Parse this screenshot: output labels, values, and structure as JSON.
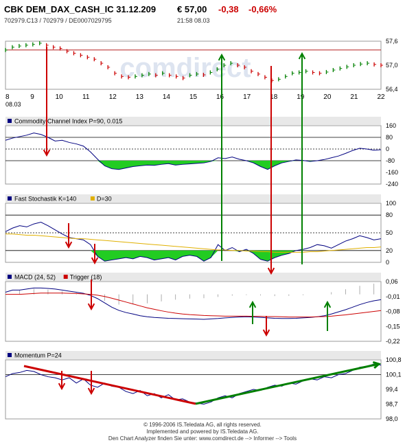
{
  "header": {
    "title": "CBK DEM_DAX_CASH_IC 31.12.209",
    "price": "€ 57,00",
    "change": "-0,38",
    "change_pct": "-0,66%",
    "ids": "702979.C13  /  702979  /  DE0007029795",
    "time": "21:58",
    "date": "08.03"
  },
  "watermark": "comdirect",
  "footer": {
    "line1": "© 1996-2006 IS.Teledata AG, all rights reserved.",
    "line2": "Implemented and powered by IS.Teledata AG.",
    "line3": "Den Chart Analyzer finden Sie unter: www.comdirect.de --> Informer --> Tools"
  },
  "colors": {
    "up": "#008000",
    "down": "#cc0000",
    "line": "#000080",
    "fill": "#22cc22",
    "signal": "#e0b000",
    "panel_header": "#e8e8e8"
  },
  "chart_data": [
    {
      "panel": "price",
      "type": "line",
      "x_ticks": [
        "8",
        "9",
        "10",
        "11",
        "12",
        "13",
        "14",
        "15",
        "16",
        "17",
        "18",
        "19",
        "20",
        "21",
        "22"
      ],
      "x_sublabel": "08.03",
      "y_ticks": [
        "57,6",
        "57,0",
        "56,4"
      ],
      "ylim": [
        56.4,
        57.6
      ],
      "reference": 57.38,
      "series": [
        {
          "values": [
            57.38,
            57.45,
            57.48,
            57.5,
            57.52,
            57.55,
            57.5,
            57.45,
            57.42,
            57.35,
            57.3,
            57.25,
            57.2,
            57.15,
            57.05,
            56.95,
            56.8,
            56.72,
            56.7,
            56.72,
            56.75,
            56.78,
            56.75,
            56.8,
            56.75,
            56.72,
            56.68,
            56.75,
            56.78,
            56.76,
            56.82,
            56.9,
            57.0,
            57.05,
            57.0,
            56.95,
            56.85,
            56.78,
            56.7,
            56.62,
            56.65,
            56.72,
            56.8,
            56.82,
            56.85,
            56.82,
            56.8,
            56.83,
            56.88,
            56.92,
            56.96,
            57.0,
            57.03,
            57.05,
            57.02,
            57.0
          ]
        }
      ]
    },
    {
      "panel": "cci",
      "type": "area",
      "label": "Commodity Channel Index P=90, 0.015",
      "y_ticks": [
        "160",
        "80",
        "0",
        "-80",
        "-160",
        "-240"
      ],
      "ylim": [
        -240,
        160
      ],
      "lines": [
        80,
        0,
        -80
      ],
      "series": [
        {
          "values": [
            60,
            75,
            85,
            95,
            110,
            100,
            80,
            55,
            60,
            45,
            35,
            20,
            -20,
            -70,
            -115,
            -135,
            -140,
            -130,
            -120,
            -115,
            -110,
            -112,
            -105,
            -100,
            -110,
            -105,
            -102,
            -98,
            -95,
            -85,
            -60,
            -65,
            -55,
            -70,
            -80,
            -95,
            -120,
            -140,
            -115,
            -95,
            -85,
            -75,
            -78,
            -85,
            -80,
            -72,
            -60,
            -48,
            -30,
            -10,
            5,
            0,
            -8,
            -5
          ]
        }
      ]
    },
    {
      "panel": "stochastic",
      "type": "line",
      "label": "Fast Stochastik K=140",
      "label2": "D=30",
      "y_ticks": [
        "100",
        "80",
        "50",
        "20",
        "0"
      ],
      "ylim": [
        0,
        100
      ],
      "lines": [
        80,
        50,
        20
      ],
      "series": [
        {
          "values": [
            52,
            58,
            62,
            60,
            65,
            68,
            62,
            55,
            48,
            42,
            40,
            38,
            30,
            10,
            2,
            4,
            6,
            8,
            6,
            10,
            8,
            4,
            6,
            8,
            4,
            10,
            12,
            10,
            2,
            8,
            30,
            20,
            25,
            18,
            22,
            15,
            5,
            2,
            8,
            12,
            15,
            20,
            22,
            25,
            30,
            28,
            24,
            30,
            36,
            40,
            45,
            42,
            38,
            40
          ]
        },
        {
          "values": [
            48,
            48,
            47,
            46,
            46,
            45,
            44,
            43,
            42,
            41,
            40,
            40,
            39,
            38,
            37,
            36,
            35,
            34,
            33,
            32,
            31,
            30,
            29,
            28,
            27,
            26,
            25,
            24,
            23,
            22,
            21,
            21,
            20,
            20,
            19,
            19,
            18,
            18,
            17,
            17,
            17,
            17,
            17,
            18,
            18,
            19,
            20,
            21,
            22,
            23,
            24,
            25,
            25,
            26
          ]
        }
      ]
    },
    {
      "panel": "macd",
      "type": "line",
      "label": "MACD (24, 52)",
      "label2": "Trigger (18)",
      "y_ticks": [
        "0,06",
        "-0,01",
        "-0,08",
        "-0,15",
        "-0,22"
      ],
      "ylim": [
        -0.22,
        0.06
      ],
      "series": [
        {
          "values": [
            0.01,
            0.02,
            0.02,
            0.025,
            0.03,
            0.03,
            0.028,
            0.025,
            0.02,
            0.015,
            0.01,
            0.005,
            -0.005,
            -0.02,
            -0.04,
            -0.06,
            -0.075,
            -0.085,
            -0.092,
            -0.1,
            -0.105,
            -0.108,
            -0.11,
            -0.112,
            -0.113,
            -0.114,
            -0.115,
            -0.116,
            -0.117,
            -0.115,
            -0.113,
            -0.11,
            -0.108,
            -0.106,
            -0.105,
            -0.106,
            -0.108,
            -0.11,
            -0.112,
            -0.113,
            -0.113,
            -0.112,
            -0.11,
            -0.108,
            -0.105,
            -0.1,
            -0.092,
            -0.082,
            -0.072,
            -0.06,
            -0.048,
            -0.038,
            -0.03,
            -0.025
          ]
        },
        {
          "values": [
            0.0,
            0.0,
            0.0,
            0.002,
            0.004,
            0.006,
            0.006,
            0.006,
            0.006,
            0.005,
            0.004,
            0.002,
            0.0,
            -0.004,
            -0.01,
            -0.018,
            -0.027,
            -0.036,
            -0.045,
            -0.054,
            -0.063,
            -0.07,
            -0.077,
            -0.083,
            -0.088,
            -0.092,
            -0.095,
            -0.097,
            -0.099,
            -0.1,
            -0.101,
            -0.102,
            -0.102,
            -0.102,
            -0.102,
            -0.103,
            -0.103,
            -0.104,
            -0.104,
            -0.105,
            -0.106,
            -0.106,
            -0.106,
            -0.106,
            -0.105,
            -0.104,
            -0.102,
            -0.099,
            -0.096,
            -0.092,
            -0.088,
            -0.084,
            -0.08,
            -0.076
          ]
        }
      ]
    },
    {
      "panel": "momentum",
      "type": "line",
      "label": "Momentum P=24",
      "y_ticks": [
        "100,8",
        "100,1",
        "99,4",
        "98,7",
        "98,0"
      ],
      "ylim": [
        98.0,
        100.8
      ],
      "reference": 100.1,
      "series": [
        {
          "values": [
            100.0,
            100.15,
            100.2,
            100.3,
            100.25,
            100.1,
            100.0,
            99.95,
            99.85,
            99.95,
            99.7,
            99.9,
            99.6,
            99.5,
            99.7,
            99.55,
            99.5,
            99.3,
            99.2,
            99.35,
            99.1,
            99.2,
            99.0,
            99.15,
            98.9,
            98.95,
            98.8,
            98.75,
            98.7,
            98.8,
            99.0,
            99.1,
            99.0,
            99.2,
            99.3,
            99.4,
            99.35,
            99.5,
            99.6,
            99.55,
            99.7,
            99.65,
            99.8,
            99.9,
            99.85,
            100.0,
            99.95,
            100.1,
            100.15,
            100.3,
            100.45,
            100.5,
            100.6,
            100.55
          ]
        }
      ]
    }
  ]
}
